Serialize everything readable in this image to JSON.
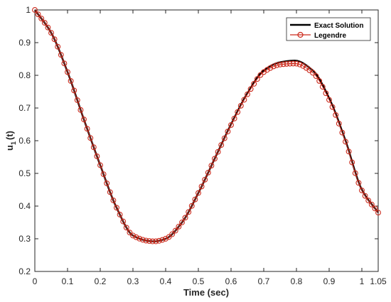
{
  "chart_data": {
    "type": "line",
    "xlabel": "Time (sec)",
    "ylabel": "u",
    "ylabel_subscript": "1",
    "ylabel_suffix": "(t)",
    "xlim": [
      0,
      1.05
    ],
    "ylim": [
      0.2,
      1
    ],
    "grid": false,
    "legend_position": "top-right",
    "x_ticks": [
      0,
      0.1,
      0.2,
      0.3,
      0.4,
      0.5,
      0.6,
      0.7,
      0.8,
      0.9,
      1,
      1.05
    ],
    "x_tick_labels": [
      "0",
      "0.1",
      "0.2",
      "0.3",
      "0.4",
      "0.5",
      "0.6",
      "0.7",
      "0.8",
      "0.9",
      "1",
      "1.05"
    ],
    "y_ticks": [
      0.2,
      0.3,
      0.4,
      0.5,
      0.6,
      0.7,
      0.8,
      0.9,
      1
    ],
    "y_tick_labels": [
      "0.2",
      "0.3",
      "0.4",
      "0.5",
      "0.6",
      "0.7",
      "0.8",
      "0.9",
      "1"
    ],
    "series": [
      {
        "name": "Exact Solution",
        "color": "#000000",
        "style": "line",
        "x": [
          0,
          0.05,
          0.1,
          0.15,
          0.2,
          0.25,
          0.3,
          0.35,
          0.365,
          0.4,
          0.45,
          0.5,
          0.55,
          0.6,
          0.65,
          0.7,
          0.75,
          0.795,
          0.85,
          0.9,
          0.95,
          1,
          1.05
        ],
        "y": [
          1,
          0.93,
          0.81,
          0.665,
          0.525,
          0.395,
          0.31,
          0.293,
          0.292,
          0.3,
          0.35,
          0.44,
          0.545,
          0.65,
          0.745,
          0.815,
          0.84,
          0.845,
          0.815,
          0.73,
          0.6,
          0.45,
          0.38
        ]
      },
      {
        "name": "Legendre",
        "color": "#cc2a1c",
        "style": "line-circle-markers",
        "x": [
          0,
          0.05,
          0.1,
          0.15,
          0.2,
          0.25,
          0.3,
          0.35,
          0.365,
          0.4,
          0.45,
          0.5,
          0.55,
          0.6,
          0.65,
          0.7,
          0.75,
          0.795,
          0.85,
          0.9,
          0.95,
          1,
          1.05
        ],
        "y": [
          1,
          0.93,
          0.81,
          0.665,
          0.525,
          0.395,
          0.31,
          0.293,
          0.292,
          0.3,
          0.35,
          0.44,
          0.545,
          0.648,
          0.742,
          0.81,
          0.833,
          0.836,
          0.808,
          0.725,
          0.597,
          0.448,
          0.38
        ]
      }
    ]
  }
}
